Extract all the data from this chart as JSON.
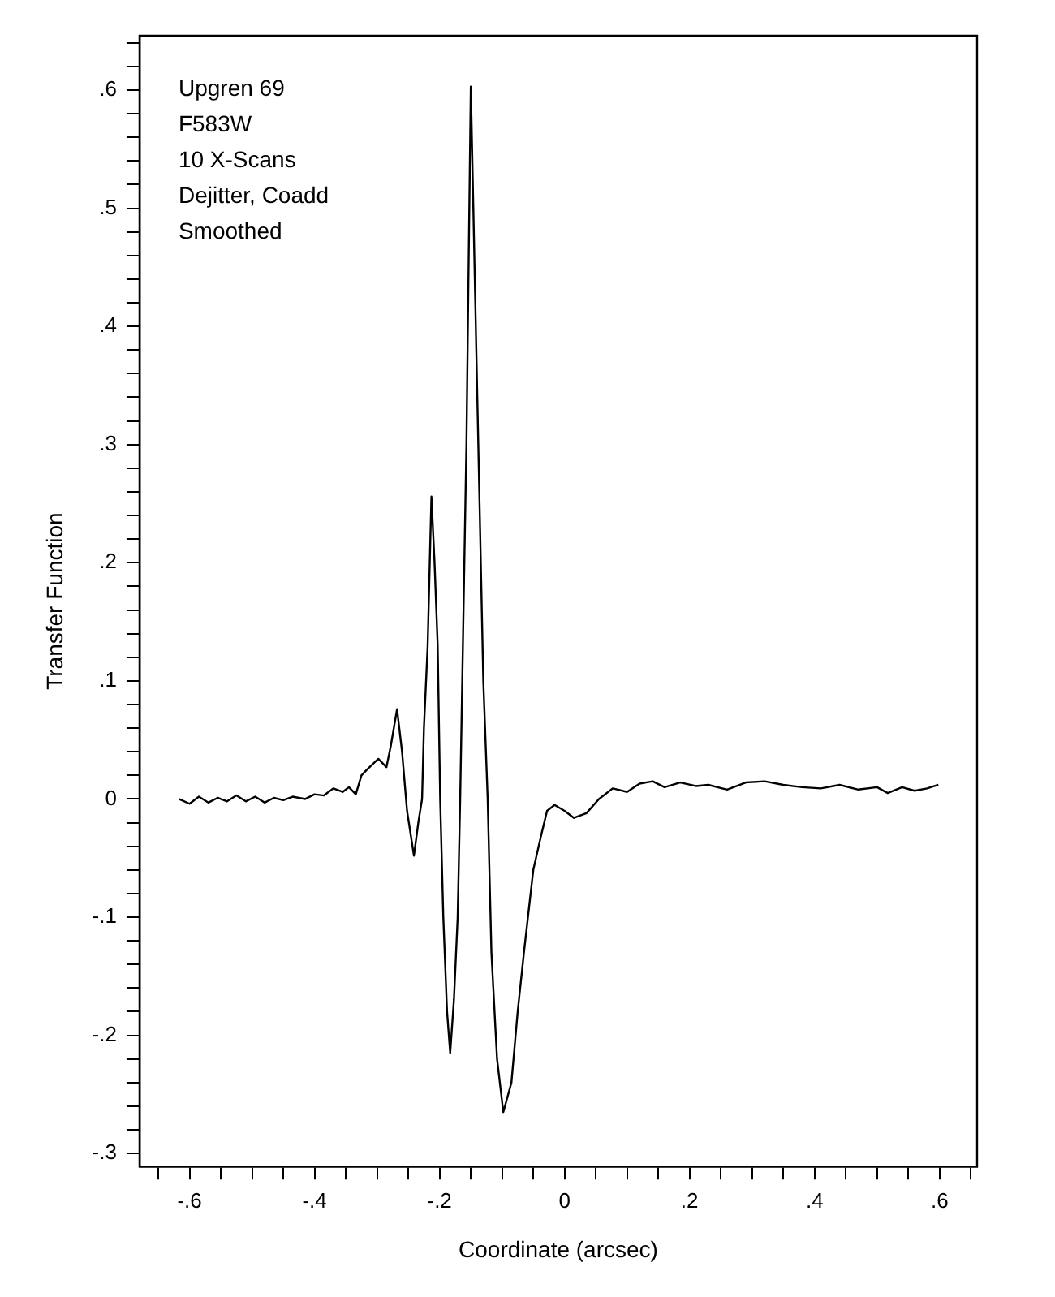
{
  "chart_data": {
    "type": "line",
    "xlabel": "Coordinate (arcsec)",
    "ylabel": "Transfer Function",
    "annotations": [
      "Upgren 69",
      "F583W",
      "10 X-Scans",
      "Dejitter, Coadd",
      "Smoothed"
    ],
    "x": [
      -0.617,
      -0.6,
      -0.585,
      -0.57,
      -0.555,
      -0.54,
      -0.525,
      -0.51,
      -0.495,
      -0.48,
      -0.465,
      -0.45,
      -0.435,
      -0.415,
      -0.4,
      -0.385,
      -0.37,
      -0.355,
      -0.345,
      -0.334,
      -0.325,
      -0.316,
      -0.298,
      -0.285,
      -0.278,
      -0.268,
      -0.26,
      -0.252,
      -0.241,
      -0.234,
      -0.228,
      -0.225,
      -0.219,
      -0.213,
      -0.208,
      -0.203,
      -0.199,
      -0.194,
      -0.188,
      -0.183,
      -0.177,
      -0.171,
      -0.167,
      -0.163,
      -0.157,
      -0.15,
      -0.144,
      -0.138,
      -0.13,
      -0.123,
      -0.117,
      -0.108,
      -0.098,
      -0.085,
      -0.075,
      -0.065,
      -0.05,
      -0.038,
      -0.028,
      -0.016,
      0,
      0.015,
      0.035,
      0.055,
      0.077,
      0.1,
      0.12,
      0.141,
      0.16,
      0.185,
      0.21,
      0.23,
      0.26,
      0.29,
      0.32,
      0.35,
      0.38,
      0.41,
      0.44,
      0.47,
      0.5,
      0.517,
      0.54,
      0.56,
      0.58,
      0.598
    ],
    "values": [
      0,
      -0.004,
      0.002,
      -0.003,
      0.001,
      -0.002,
      0.003,
      -0.002,
      0.002,
      -0.003,
      0.001,
      -0.001,
      0.002,
      0,
      0.004,
      0.003,
      0.009,
      0.006,
      0.01,
      0.004,
      0.02,
      0.025,
      0.034,
      0.027,
      0.045,
      0.076,
      0.04,
      -0.01,
      -0.048,
      -0.02,
      0,
      0.06,
      0.13,
      0.256,
      0.2,
      0.13,
      0,
      -0.1,
      -0.18,
      -0.215,
      -0.17,
      -0.1,
      0,
      0.12,
      0.3,
      0.603,
      0.45,
      0.3,
      0.1,
      0,
      -0.13,
      -0.22,
      -0.265,
      -0.24,
      -0.18,
      -0.13,
      -0.06,
      -0.032,
      -0.01,
      -0.005,
      -0.01,
      -0.016,
      -0.012,
      0,
      0.009,
      0.006,
      0.013,
      0.015,
      0.01,
      0.014,
      0.011,
      0.012,
      0.008,
      0.014,
      0.015,
      0.012,
      0.01,
      0.009,
      0.012,
      0.008,
      0.01,
      0.005,
      0.01,
      0.007,
      0.009,
      0.012
    ],
    "color": "#000000",
    "marker": "none",
    "line_style": "solid",
    "legend": false,
    "grid": false,
    "xlim": [
      -0.68,
      0.66
    ],
    "xticks": [
      {
        "value": -0.65,
        "label": null
      },
      {
        "value": -0.6,
        "label": "-.6"
      },
      {
        "value": -0.55,
        "label": null
      },
      {
        "value": -0.5,
        "label": null
      },
      {
        "value": -0.45,
        "label": null
      },
      {
        "value": -0.4,
        "label": "-.4"
      },
      {
        "value": -0.35,
        "label": null
      },
      {
        "value": -0.3,
        "label": null
      },
      {
        "value": -0.25,
        "label": null
      },
      {
        "value": -0.2,
        "label": "-.2"
      },
      {
        "value": -0.15,
        "label": null
      },
      {
        "value": -0.1,
        "label": null
      },
      {
        "value": -0.05,
        "label": null
      },
      0,
      {
        "value": 0.05,
        "label": null
      },
      {
        "value": 0.1,
        "label": null
      },
      {
        "value": 0.15,
        "label": null
      },
      {
        "value": 0.2,
        "label": ".2"
      },
      {
        "value": 0.25,
        "label": null
      },
      {
        "value": 0.3,
        "label": null
      },
      {
        "value": 0.35,
        "label": null
      },
      {
        "value": 0.4,
        "label": ".4"
      },
      {
        "value": 0.45,
        "label": null
      },
      {
        "value": 0.5,
        "label": null
      },
      {
        "value": 0.55,
        "label": null
      },
      {
        "value": 0.6,
        "label": ".6"
      },
      {
        "value": 0.65,
        "label": null
      }
    ],
    "ylim": [
      -0.311,
      0.646
    ],
    "yticks": [
      {
        "value": -0.3,
        "label": "-.3"
      },
      {
        "value": -0.28,
        "label": null
      },
      {
        "value": -0.26,
        "label": null
      },
      {
        "value": -0.24,
        "label": null
      },
      {
        "value": -0.22,
        "label": null
      },
      {
        "value": -0.2,
        "label": "-.2"
      },
      {
        "value": -0.18,
        "label": null
      },
      {
        "value": -0.16,
        "label": null
      },
      {
        "value": -0.14,
        "label": null
      },
      {
        "value": -0.12,
        "label": null
      },
      {
        "value": -0.1,
        "label": "-.1"
      },
      {
        "value": -0.08,
        "label": null
      },
      {
        "value": -0.06,
        "label": null
      },
      {
        "value": -0.04,
        "label": null
      },
      {
        "value": -0.02,
        "label": null
      },
      0,
      {
        "value": 0.02,
        "label": null
      },
      {
        "value": 0.04,
        "label": null
      },
      {
        "value": 0.06,
        "label": null
      },
      {
        "value": 0.08,
        "label": null
      },
      {
        "value": 0.1,
        "label": ".1"
      },
      {
        "value": 0.12,
        "label": null
      },
      {
        "value": 0.14,
        "label": null
      },
      {
        "value": 0.16,
        "label": null
      },
      {
        "value": 0.18,
        "label": null
      },
      {
        "value": 0.2,
        "label": ".2"
      },
      {
        "value": 0.22,
        "label": null
      },
      {
        "value": 0.24,
        "label": null
      },
      {
        "value": 0.26,
        "label": null
      },
      {
        "value": 0.28,
        "label": null
      },
      {
        "value": 0.3,
        "label": ".3"
      },
      {
        "value": 0.32,
        "label": null
      },
      {
        "value": 0.34,
        "label": null
      },
      {
        "value": 0.36,
        "label": null
      },
      {
        "value": 0.38,
        "label": null
      },
      {
        "value": 0.4,
        "label": ".4"
      },
      {
        "value": 0.42,
        "label": null
      },
      {
        "value": 0.44,
        "label": null
      },
      {
        "value": 0.46,
        "label": null
      },
      {
        "value": 0.48,
        "label": null
      },
      {
        "value": 0.5,
        "label": ".5"
      },
      {
        "value": 0.52,
        "label": null
      },
      {
        "value": 0.54,
        "label": null
      },
      {
        "value": 0.56,
        "label": null
      },
      {
        "value": 0.58,
        "label": null
      },
      {
        "value": 0.6,
        "label": ".6"
      },
      {
        "value": 0.62,
        "label": null
      },
      {
        "value": 0.64,
        "label": null
      }
    ]
  }
}
